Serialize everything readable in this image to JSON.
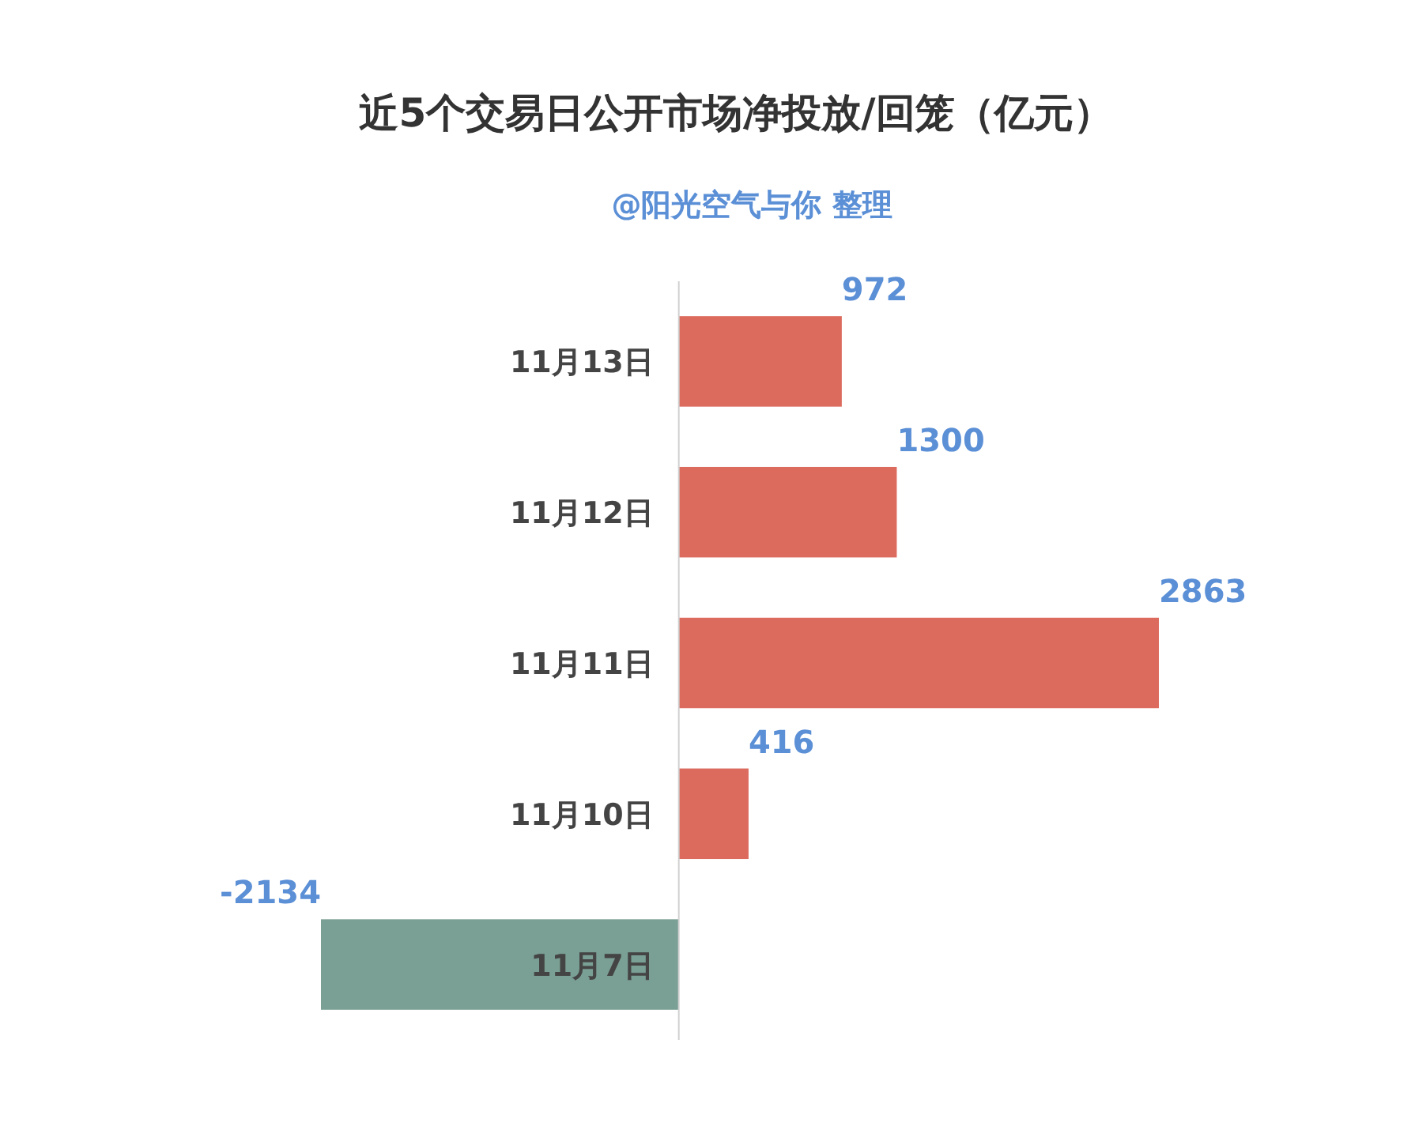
{
  "chart_data": {
    "type": "bar",
    "orientation": "horizontal",
    "title": "近5个交易日公开市场净投放/回笼（亿元）",
    "subtitle": "@阳光空气与你 整理",
    "categories": [
      "11月13日",
      "11月12日",
      "11月11日",
      "11月10日",
      "11月7日"
    ],
    "values": [
      972,
      1300,
      2863,
      416,
      -2134
    ],
    "colors": [
      "#dc6b5e",
      "#dc6b5e",
      "#dc6b5e",
      "#dc6b5e",
      "#7a9f94"
    ],
    "data_labels": true
  }
}
